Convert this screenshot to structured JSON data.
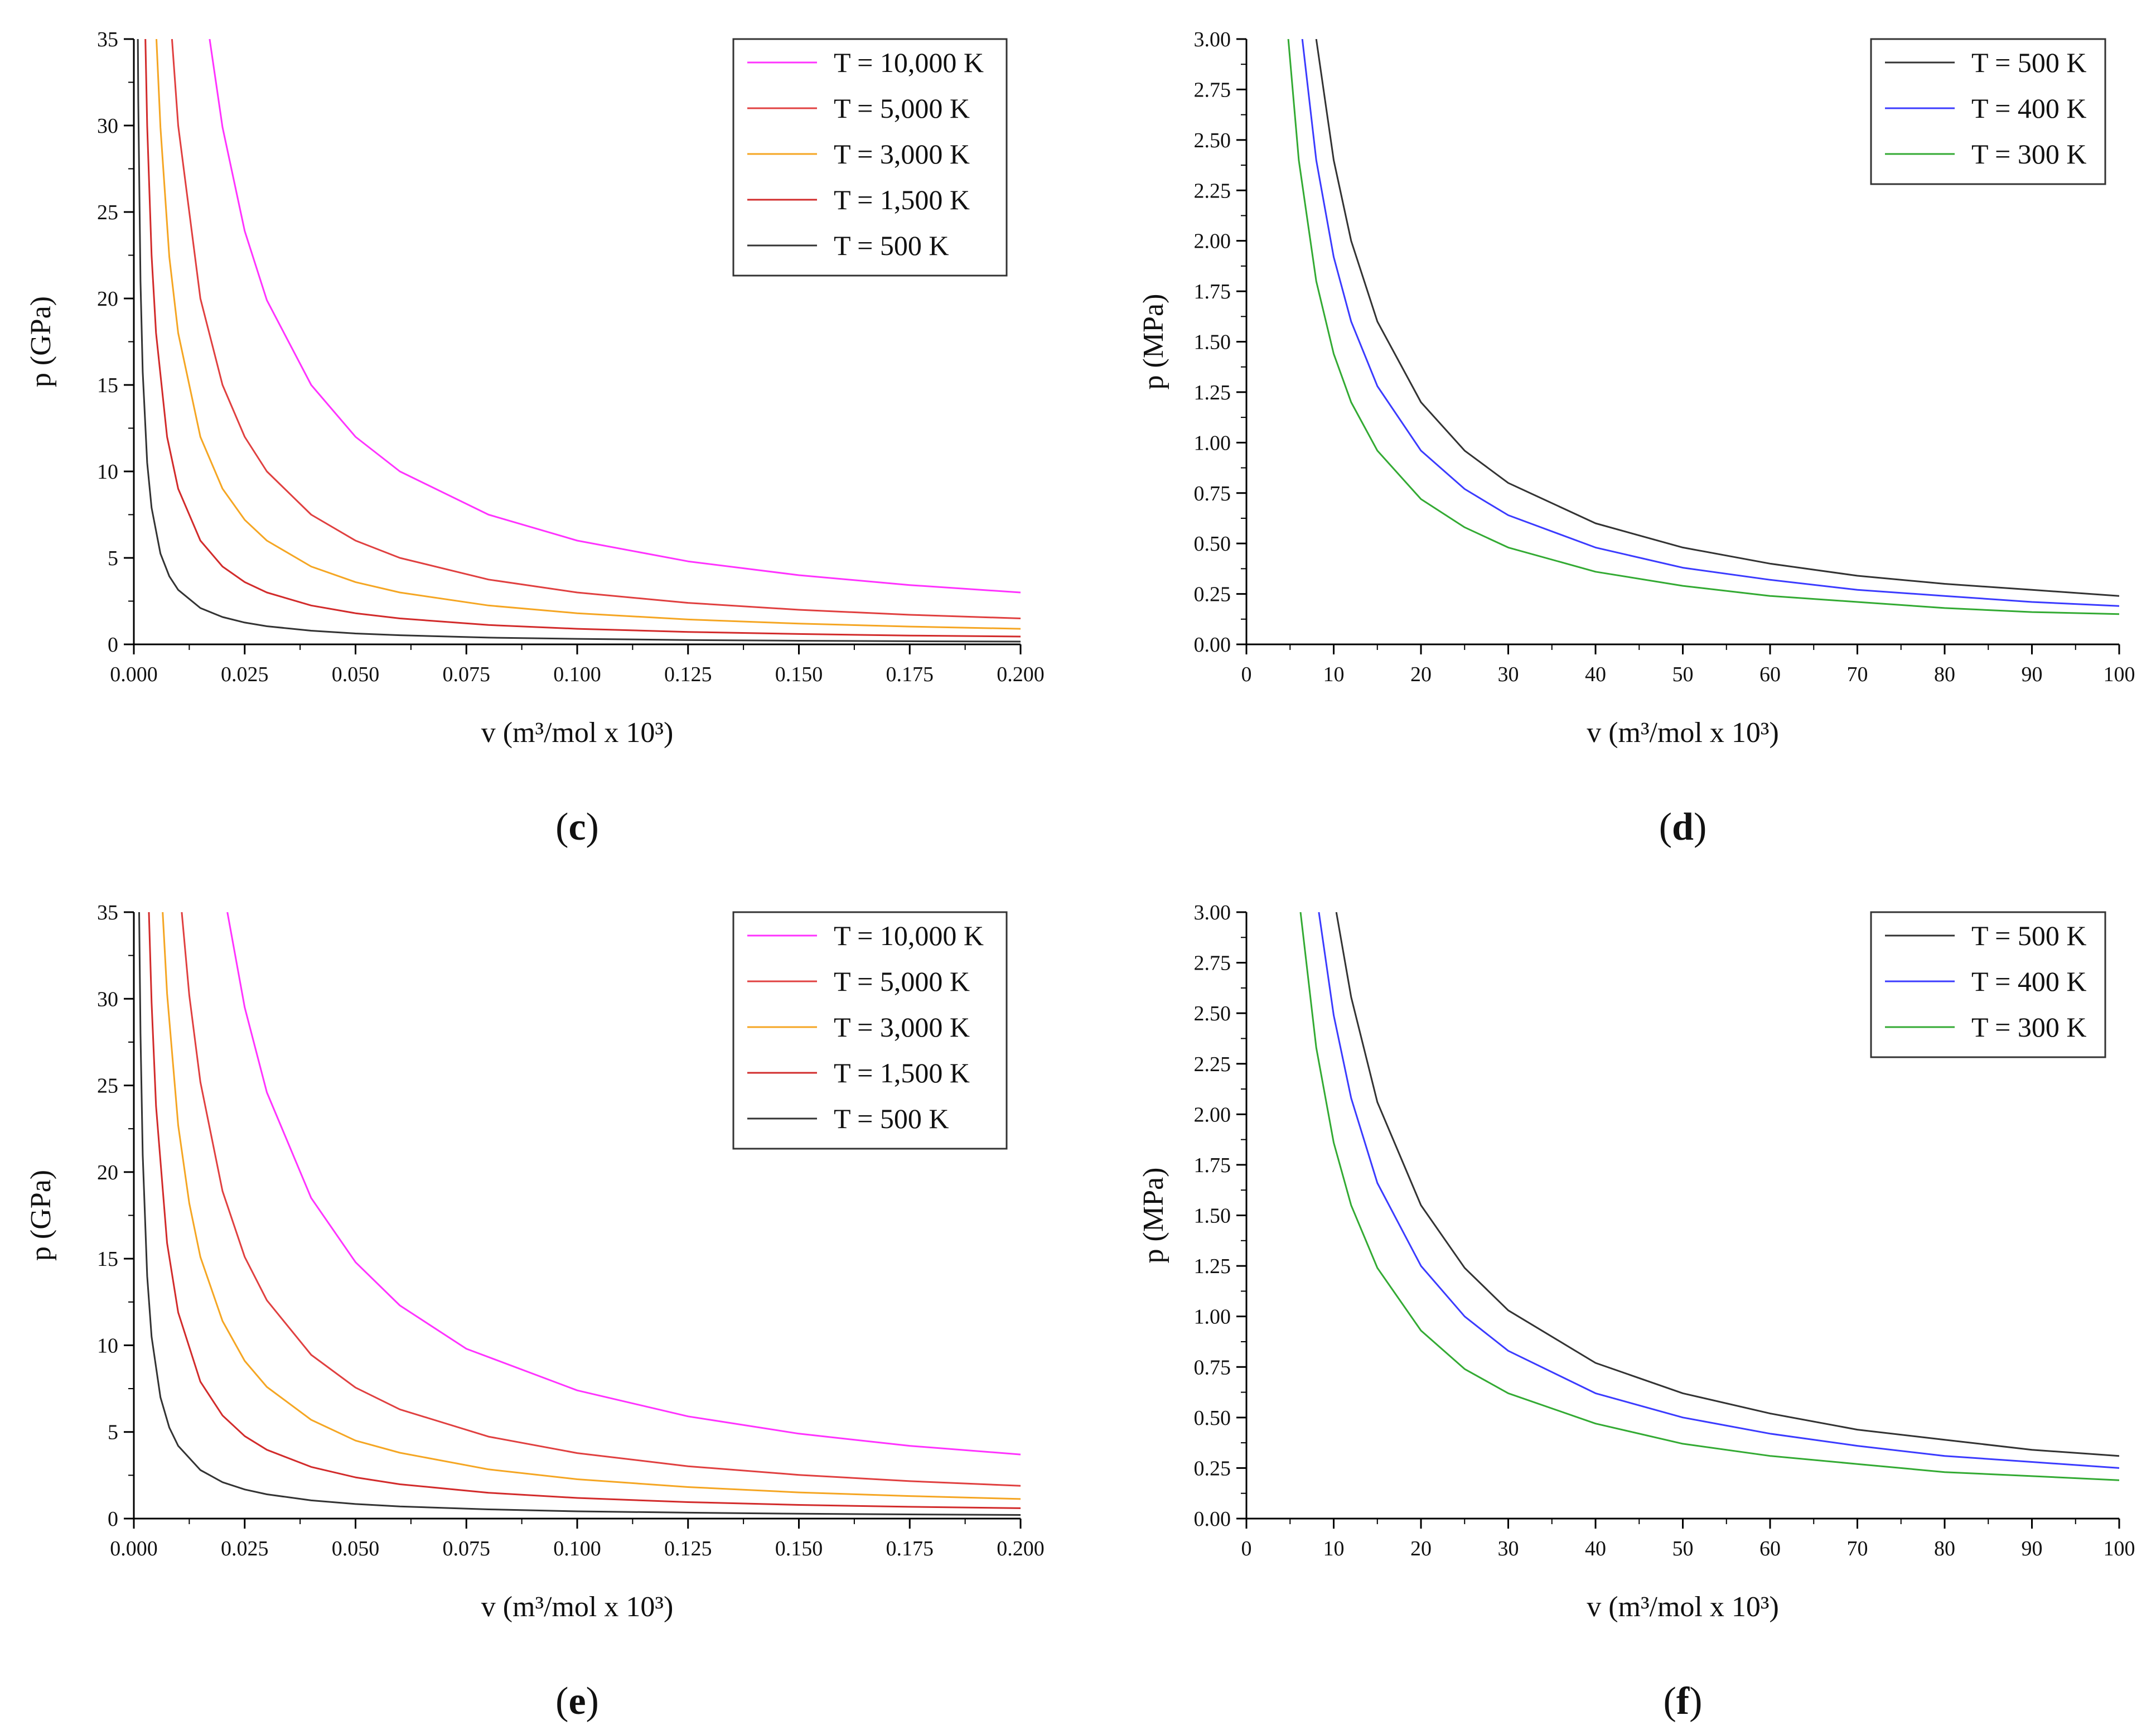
{
  "chart_data": [
    {
      "panel_label": "(c)",
      "panel_letter": "c",
      "type": "line",
      "xlabel": "v (m³/mol x 10³)",
      "ylabel": "p (GPa)",
      "xlim": [
        0,
        0.2
      ],
      "ylim": [
        0,
        35
      ],
      "xticks": [
        "0.000",
        "0.025",
        "0.050",
        "0.075",
        "0.100",
        "0.125",
        "0.150",
        "0.175",
        "0.200"
      ],
      "yticks": [
        "0",
        "5",
        "10",
        "15",
        "20",
        "25",
        "30",
        "35"
      ],
      "legend_position": "top-right",
      "series": [
        {
          "name": "T = 10,000 K",
          "color": "#ff33ff",
          "x": [
            0.0171,
            0.02,
            0.025,
            0.03,
            0.04,
            0.05,
            0.06,
            0.08,
            0.1,
            0.125,
            0.15,
            0.175,
            0.2
          ],
          "values": [
            35,
            29.9,
            23.9,
            19.9,
            15.0,
            12.0,
            10.0,
            7.5,
            6.0,
            4.8,
            4.0,
            3.43,
            3.0
          ]
        },
        {
          "name": "T = 5,000 K",
          "color": "#e04040",
          "x": [
            0.0086,
            0.01,
            0.015,
            0.02,
            0.025,
            0.03,
            0.04,
            0.05,
            0.06,
            0.08,
            0.1,
            0.125,
            0.15,
            0.175,
            0.2
          ],
          "values": [
            35,
            30.0,
            20.0,
            15.0,
            12.0,
            10.0,
            7.5,
            6.0,
            5.0,
            3.75,
            3.0,
            2.4,
            2.0,
            1.71,
            1.5
          ]
        },
        {
          "name": "T = 3,000 K",
          "color": "#f5a623",
          "x": [
            0.0051,
            0.006,
            0.008,
            0.01,
            0.015,
            0.02,
            0.025,
            0.03,
            0.04,
            0.05,
            0.06,
            0.08,
            0.1,
            0.125,
            0.15,
            0.175,
            0.2
          ],
          "values": [
            35,
            29.9,
            22.4,
            18.0,
            12.0,
            9.0,
            7.2,
            6.0,
            4.5,
            3.6,
            3.0,
            2.25,
            1.8,
            1.44,
            1.2,
            1.03,
            0.9
          ]
        },
        {
          "name": "T = 1,500 K",
          "color": "#d22b2b",
          "x": [
            0.0026,
            0.003,
            0.004,
            0.005,
            0.0075,
            0.01,
            0.015,
            0.02,
            0.025,
            0.03,
            0.04,
            0.05,
            0.06,
            0.08,
            0.1,
            0.125,
            0.15,
            0.175,
            0.2
          ],
          "values": [
            35,
            30.0,
            22.5,
            18.0,
            12.0,
            9.0,
            6.0,
            4.5,
            3.6,
            3.0,
            2.25,
            1.8,
            1.5,
            1.12,
            0.9,
            0.72,
            0.6,
            0.51,
            0.45
          ]
        },
        {
          "name": "T = 500 K",
          "color": "#333333",
          "x": [
            0.0009,
            0.001,
            0.0015,
            0.002,
            0.003,
            0.004,
            0.006,
            0.008,
            0.01,
            0.015,
            0.02,
            0.025,
            0.03,
            0.04,
            0.05,
            0.06,
            0.08,
            0.1,
            0.125,
            0.15,
            0.175,
            0.2
          ],
          "values": [
            35,
            31.5,
            21.0,
            15.75,
            10.5,
            7.9,
            5.25,
            3.94,
            3.15,
            2.1,
            1.58,
            1.26,
            1.05,
            0.79,
            0.63,
            0.53,
            0.39,
            0.32,
            0.25,
            0.21,
            0.18,
            0.16
          ]
        }
      ]
    },
    {
      "panel_label": "(d)",
      "panel_letter": "d",
      "type": "line",
      "xlabel": "v (m³/mol x 10³)",
      "ylabel": "p (MPa)",
      "xlim": [
        0,
        100
      ],
      "ylim": [
        0,
        3
      ],
      "xticks": [
        "0",
        "10",
        "20",
        "30",
        "40",
        "50",
        "60",
        "70",
        "80",
        "90",
        "100"
      ],
      "yticks": [
        "0.00",
        "0.25",
        "0.50",
        "0.75",
        "1.00",
        "1.25",
        "1.50",
        "1.75",
        "2.00",
        "2.25",
        "2.50",
        "2.75",
        "3.00"
      ],
      "legend_position": "top-right",
      "series": [
        {
          "name": "T = 500 K",
          "color": "#333333",
          "x": [
            8,
            10,
            12,
            15,
            20,
            25,
            30,
            40,
            50,
            60,
            70,
            80,
            90,
            100
          ],
          "values": [
            3.0,
            2.4,
            2.0,
            1.6,
            1.2,
            0.96,
            0.8,
            0.6,
            0.48,
            0.4,
            0.34,
            0.3,
            0.27,
            0.24
          ]
        },
        {
          "name": "T = 400 K",
          "color": "#3b3bff",
          "x": [
            6.4,
            8,
            10,
            12,
            15,
            20,
            25,
            30,
            40,
            50,
            60,
            70,
            80,
            90,
            100
          ],
          "values": [
            3.0,
            2.4,
            1.92,
            1.6,
            1.28,
            0.96,
            0.77,
            0.64,
            0.48,
            0.38,
            0.32,
            0.27,
            0.24,
            0.21,
            0.19
          ]
        },
        {
          "name": "T = 300 K",
          "color": "#33aa33",
          "x": [
            4.8,
            6,
            8,
            10,
            12,
            15,
            20,
            25,
            30,
            40,
            50,
            60,
            70,
            80,
            90,
            100
          ],
          "values": [
            3.0,
            2.4,
            1.8,
            1.44,
            1.2,
            0.96,
            0.72,
            0.58,
            0.48,
            0.36,
            0.29,
            0.24,
            0.21,
            0.18,
            0.16,
            0.15
          ]
        }
      ]
    },
    {
      "panel_label": "(e)",
      "panel_letter": "e",
      "type": "line",
      "xlabel": "v (m³/mol x 10³)",
      "ylabel": "p (GPa)",
      "xlim": [
        0,
        0.2
      ],
      "ylim": [
        0,
        35
      ],
      "xticks": [
        "0.000",
        "0.025",
        "0.050",
        "0.075",
        "0.100",
        "0.125",
        "0.150",
        "0.175",
        "0.200"
      ],
      "yticks": [
        "0",
        "5",
        "10",
        "15",
        "20",
        "25",
        "30",
        "35"
      ],
      "legend_position": "top-right",
      "series": [
        {
          "name": "T = 10,000 K",
          "color": "#ff33ff",
          "x": [
            0.0211,
            0.025,
            0.03,
            0.04,
            0.05,
            0.06,
            0.075,
            0.1,
            0.125,
            0.15,
            0.175,
            0.2
          ],
          "values": [
            35,
            29.5,
            24.6,
            18.5,
            14.8,
            12.3,
            9.8,
            7.4,
            5.9,
            4.9,
            4.2,
            3.7
          ]
        },
        {
          "name": "T = 5,000 K",
          "color": "#e04040",
          "x": [
            0.0108,
            0.0125,
            0.015,
            0.02,
            0.025,
            0.03,
            0.04,
            0.05,
            0.06,
            0.08,
            0.1,
            0.125,
            0.15,
            0.175,
            0.2
          ],
          "values": [
            35,
            30.2,
            25.2,
            18.9,
            15.1,
            12.6,
            9.45,
            7.56,
            6.3,
            4.73,
            3.78,
            3.02,
            2.52,
            2.16,
            1.89
          ]
        },
        {
          "name": "T = 3,000 K",
          "color": "#f5a623",
          "x": [
            0.0065,
            0.0075,
            0.01,
            0.0125,
            0.015,
            0.02,
            0.025,
            0.03,
            0.04,
            0.05,
            0.06,
            0.08,
            0.1,
            0.125,
            0.15,
            0.175,
            0.2
          ],
          "values": [
            35,
            30.3,
            22.7,
            18.2,
            15.1,
            11.4,
            9.1,
            7.6,
            5.7,
            4.5,
            3.8,
            2.84,
            2.27,
            1.82,
            1.51,
            1.3,
            1.13
          ]
        },
        {
          "name": "T = 1,500 K",
          "color": "#d22b2b",
          "x": [
            0.0034,
            0.004,
            0.005,
            0.0075,
            0.01,
            0.015,
            0.02,
            0.025,
            0.03,
            0.04,
            0.05,
            0.06,
            0.08,
            0.1,
            0.125,
            0.15,
            0.175,
            0.2
          ],
          "values": [
            35,
            29.8,
            23.8,
            15.9,
            11.9,
            7.9,
            5.95,
            4.76,
            3.97,
            2.98,
            2.38,
            1.98,
            1.49,
            1.19,
            0.95,
            0.79,
            0.68,
            0.6
          ]
        },
        {
          "name": "T = 500 K",
          "color": "#333333",
          "x": [
            0.0012,
            0.0015,
            0.002,
            0.003,
            0.004,
            0.006,
            0.008,
            0.01,
            0.015,
            0.02,
            0.025,
            0.03,
            0.04,
            0.05,
            0.06,
            0.08,
            0.1,
            0.125,
            0.15,
            0.175,
            0.2
          ],
          "values": [
            35,
            28.0,
            21.0,
            14.0,
            10.5,
            7.0,
            5.25,
            4.2,
            2.8,
            2.1,
            1.68,
            1.4,
            1.05,
            0.84,
            0.7,
            0.53,
            0.42,
            0.34,
            0.28,
            0.24,
            0.21
          ]
        }
      ]
    },
    {
      "panel_label": "(f)",
      "panel_letter": "f",
      "type": "line",
      "xlabel": "v (m³/mol x 10³)",
      "ylabel": "p (MPa)",
      "xlim": [
        0,
        100
      ],
      "ylim": [
        0,
        3
      ],
      "xticks": [
        "0",
        "10",
        "20",
        "30",
        "40",
        "50",
        "60",
        "70",
        "80",
        "90",
        "100"
      ],
      "yticks": [
        "0.00",
        "0.25",
        "0.50",
        "0.75",
        "1.00",
        "1.25",
        "1.50",
        "1.75",
        "2.00",
        "2.25",
        "2.50",
        "2.75",
        "3.00"
      ],
      "legend_position": "top-right",
      "series": [
        {
          "name": "T = 500 K",
          "color": "#333333",
          "x": [
            10.3,
            12,
            15,
            20,
            25,
            30,
            40,
            50,
            60,
            70,
            80,
            90,
            100
          ],
          "values": [
            3.0,
            2.58,
            2.06,
            1.55,
            1.24,
            1.03,
            0.77,
            0.62,
            0.52,
            0.44,
            0.39,
            0.34,
            0.31
          ]
        },
        {
          "name": "T = 400 K",
          "color": "#3b3bff",
          "x": [
            8.3,
            10,
            12,
            15,
            20,
            25,
            30,
            40,
            50,
            60,
            70,
            80,
            90,
            100
          ],
          "values": [
            3.0,
            2.49,
            2.08,
            1.66,
            1.25,
            1.0,
            0.83,
            0.62,
            0.5,
            0.42,
            0.36,
            0.31,
            0.28,
            0.25
          ]
        },
        {
          "name": "T = 300 K",
          "color": "#33aa33",
          "x": [
            6.2,
            8,
            10,
            12,
            15,
            20,
            25,
            30,
            40,
            50,
            60,
            70,
            80,
            90,
            100
          ],
          "values": [
            3.0,
            2.33,
            1.86,
            1.55,
            1.24,
            0.93,
            0.74,
            0.62,
            0.47,
            0.37,
            0.31,
            0.27,
            0.23,
            0.21,
            0.19
          ]
        }
      ]
    }
  ]
}
